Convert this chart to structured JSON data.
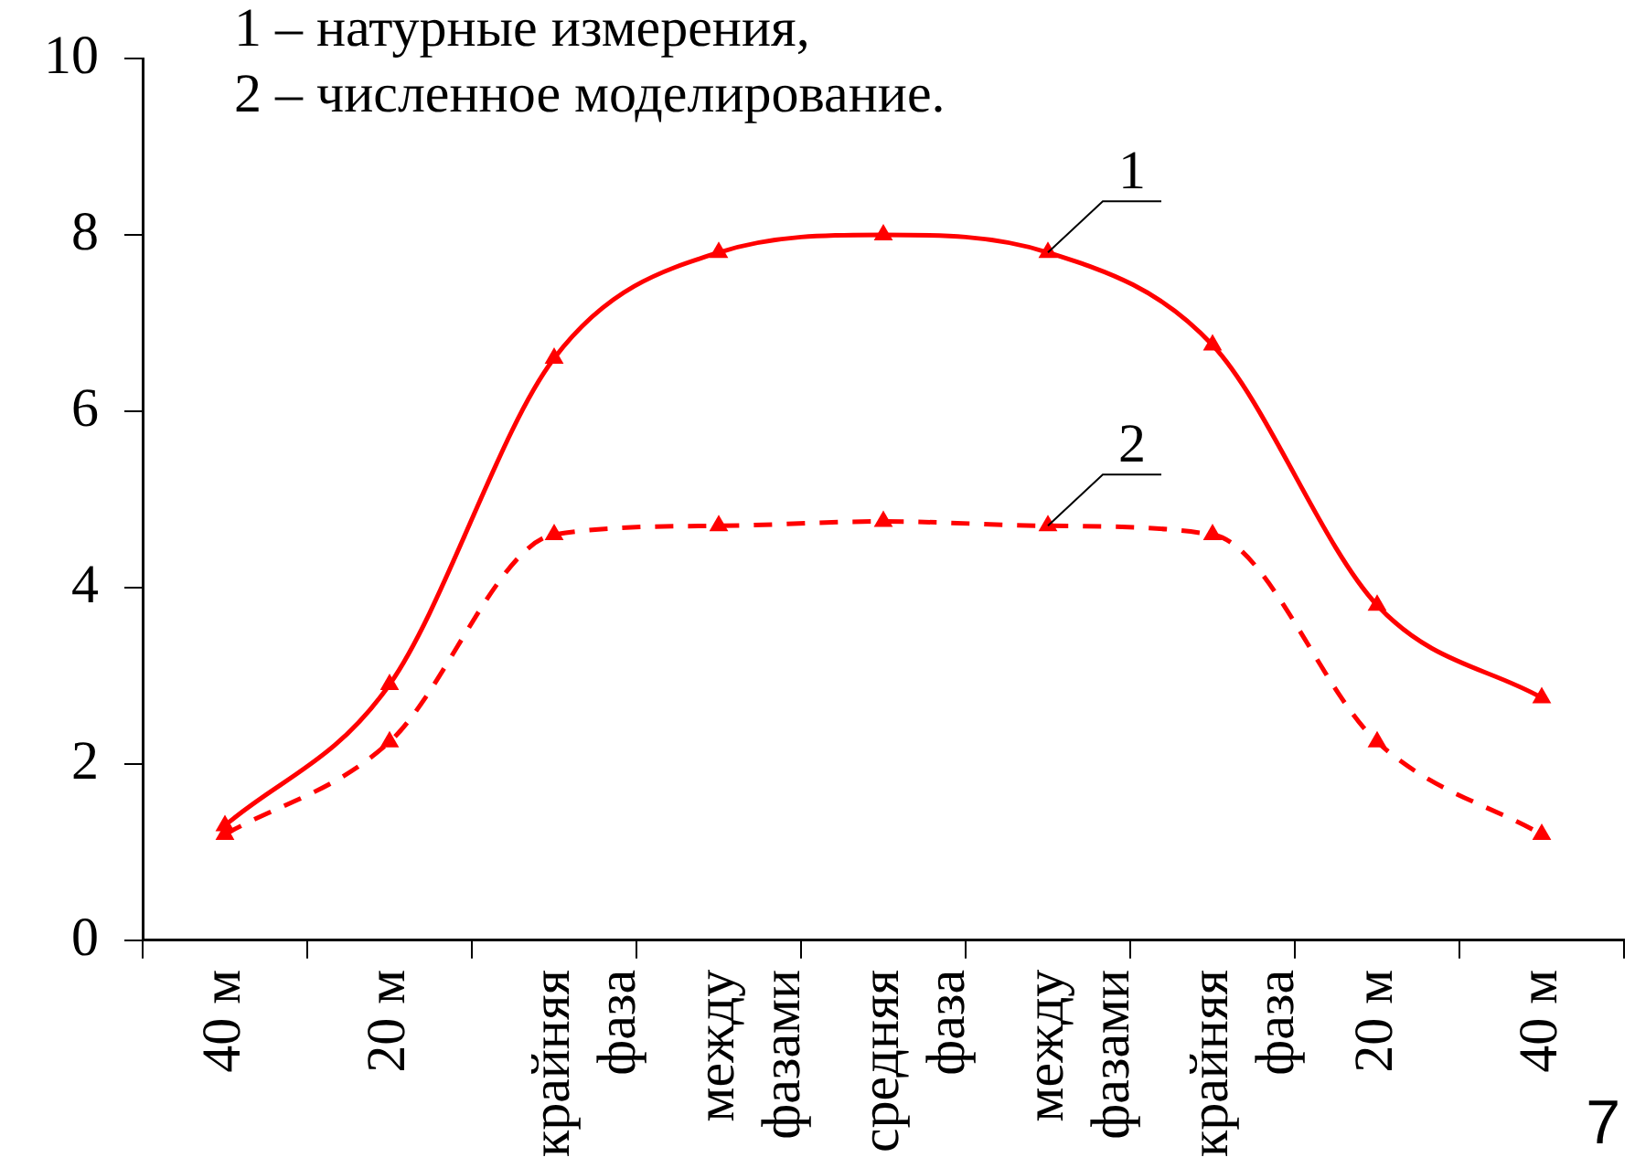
{
  "chart_data": {
    "type": "line",
    "categories": [
      "40 м",
      "20 м",
      "крайняя фаза",
      "между фазами",
      "средняя фаза",
      "между фазами",
      "крайняя фаза",
      "20 м",
      "40 м"
    ],
    "series": [
      {
        "name": "1",
        "color": "#ff0000",
        "line_style": "solid",
        "values": [
          1.3,
          2.9,
          6.6,
          7.8,
          8.0,
          7.8,
          6.75,
          3.8,
          2.75
        ]
      },
      {
        "name": "2",
        "color": "#ff0000",
        "line_style": "dashed",
        "values": [
          1.2,
          2.25,
          4.6,
          4.7,
          4.75,
          4.7,
          4.6,
          2.25,
          1.2
        ]
      }
    ],
    "ylim": [
      0,
      10
    ],
    "yticks": [
      0,
      2,
      4,
      6,
      8,
      10
    ],
    "grid": false,
    "legend": false,
    "marker": "triangle",
    "annotations": [
      "1 – натурные измерения,",
      "2 – численное моделирование.",
      "7"
    ]
  }
}
